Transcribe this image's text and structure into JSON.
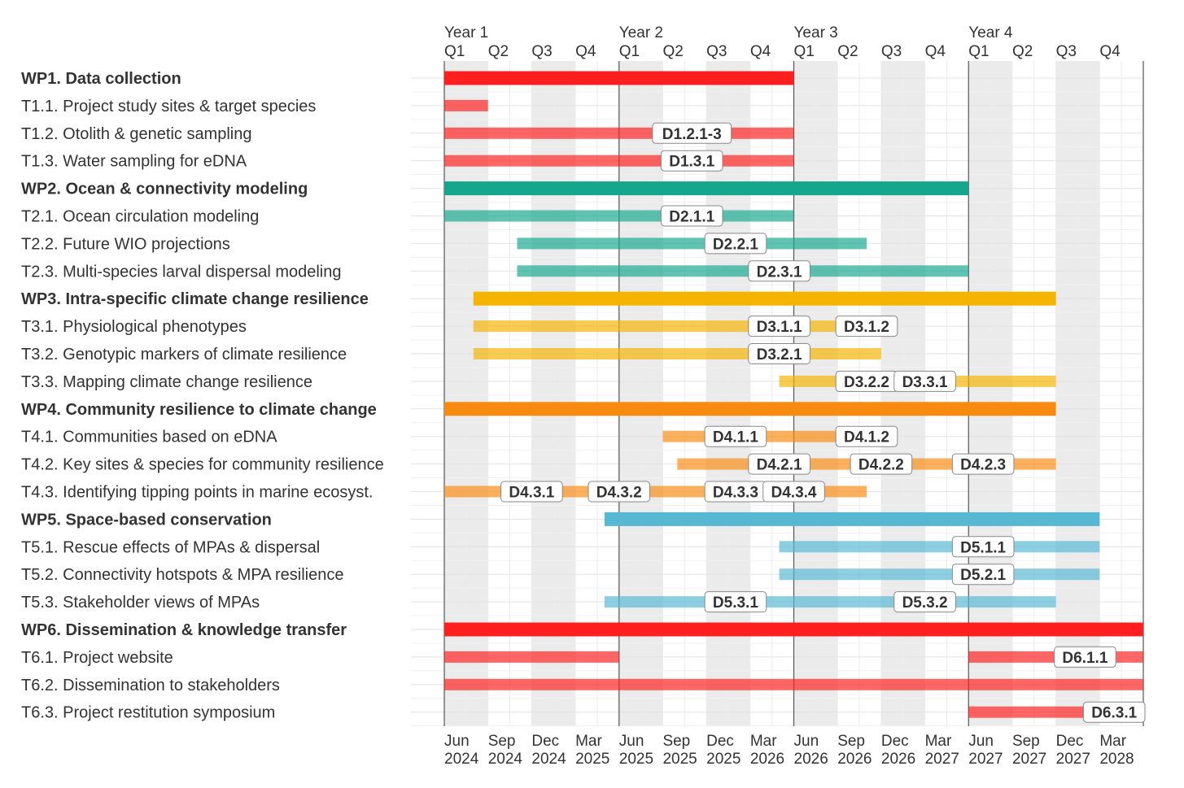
{
  "chart_data": {
    "type": "gantt",
    "year_labels": [
      "Year 1",
      "Year 2",
      "Year 3",
      "Year 4"
    ],
    "quarter_labels": [
      "Q1",
      "Q2",
      "Q3",
      "Q4"
    ],
    "bottom_ticks": [
      {
        "month": "Jun",
        "year": "2024"
      },
      {
        "month": "Sep",
        "year": "2024"
      },
      {
        "month": "Dec",
        "year": "2024"
      },
      {
        "month": "Mar",
        "year": "2025"
      },
      {
        "month": "Jun",
        "year": "2025"
      },
      {
        "month": "Sep",
        "year": "2025"
      },
      {
        "month": "Dec",
        "year": "2025"
      },
      {
        "month": "Mar",
        "year": "2026"
      },
      {
        "month": "Jun",
        "year": "2026"
      },
      {
        "month": "Sep",
        "year": "2026"
      },
      {
        "month": "Dec",
        "year": "2026"
      },
      {
        "month": "Mar",
        "year": "2027"
      },
      {
        "month": "Jun",
        "year": "2027"
      },
      {
        "month": "Sep",
        "year": "2027"
      },
      {
        "month": "Dec",
        "year": "2027"
      },
      {
        "month": "Mar",
        "year": "2028"
      }
    ],
    "x_start": "2024-06",
    "x_end": "2028-06",
    "colors": {
      "WP1": "#ff1f1f",
      "WP2": "#16a68d",
      "WP3": "#f5b400",
      "WP4": "#f98a10",
      "WP5": "#57b8d4",
      "WP6": "#ff1f1f",
      "shade": "#ebebeb",
      "grid": "#e2e2e2",
      "year_line": "#555555"
    },
    "rows": [
      {
        "label": "WP1. Data collection",
        "wp": "WP1",
        "bold": true,
        "start": "2024-06",
        "end": "2026-06",
        "deliverables": []
      },
      {
        "label": "T1.1. Project study sites & target species",
        "wp": "WP1",
        "bold": false,
        "start": "2024-06",
        "end": "2024-09",
        "deliverables": []
      },
      {
        "label": "T1.2. Otolith & genetic sampling",
        "wp": "WP1",
        "bold": false,
        "start": "2024-06",
        "end": "2026-06",
        "deliverables": [
          {
            "id": "D1.2.1-3",
            "date": "2025-11"
          }
        ]
      },
      {
        "label": "T1.3. Water sampling for eDNA",
        "wp": "WP1",
        "bold": false,
        "start": "2024-06",
        "end": "2026-06",
        "deliverables": [
          {
            "id": "D1.3.1",
            "date": "2025-11"
          }
        ]
      },
      {
        "label": "WP2. Ocean & connectivity modeling",
        "wp": "WP2",
        "bold": true,
        "start": "2024-06",
        "end": "2027-06",
        "deliverables": []
      },
      {
        "label": "T2.1. Ocean circulation modeling",
        "wp": "WP2",
        "bold": false,
        "start": "2024-06",
        "end": "2026-06",
        "deliverables": [
          {
            "id": "D2.1.1",
            "date": "2025-11"
          }
        ]
      },
      {
        "label": "T2.2. Future WIO projections",
        "wp": "WP2",
        "bold": false,
        "start": "2024-11",
        "end": "2026-11",
        "deliverables": [
          {
            "id": "D2.2.1",
            "date": "2026-02"
          }
        ]
      },
      {
        "label": "T2.3. Multi-species larval dispersal modeling",
        "wp": "WP2",
        "bold": false,
        "start": "2024-11",
        "end": "2027-06",
        "deliverables": [
          {
            "id": "D2.3.1",
            "date": "2026-05"
          }
        ]
      },
      {
        "label": "WP3. Intra-specific climate change resilience",
        "wp": "WP3",
        "bold": true,
        "start": "2024-08",
        "end": "2027-12",
        "deliverables": []
      },
      {
        "label": "T3.1. Physiological phenotypes",
        "wp": "WP3",
        "bold": false,
        "start": "2024-08",
        "end": "2026-12",
        "deliverables": [
          {
            "id": "D3.1.1",
            "date": "2026-05"
          },
          {
            "id": "D3.1.2",
            "date": "2026-11"
          }
        ]
      },
      {
        "label": "T3.2. Genotypic markers of climate resilience",
        "wp": "WP3",
        "bold": false,
        "start": "2024-08",
        "end": "2026-12",
        "deliverables": [
          {
            "id": "D3.2.1",
            "date": "2026-05"
          }
        ]
      },
      {
        "label": "T3.3. Mapping climate change resilience",
        "wp": "WP3",
        "bold": false,
        "start": "2026-05",
        "end": "2027-12",
        "deliverables": [
          {
            "id": "D3.2.2",
            "date": "2026-11"
          },
          {
            "id": "D3.3.1",
            "date": "2027-03"
          }
        ]
      },
      {
        "label": "WP4. Community resilience to climate change",
        "wp": "WP4",
        "bold": true,
        "start": "2024-06",
        "end": "2027-12",
        "deliverables": []
      },
      {
        "label": "T4.1. Communities based on eDNA",
        "wp": "WP4",
        "bold": false,
        "start": "2025-09",
        "end": "2026-12",
        "deliverables": [
          {
            "id": "D4.1.1",
            "date": "2026-02"
          },
          {
            "id": "D4.1.2",
            "date": "2026-11"
          }
        ]
      },
      {
        "label": "T4.2. Key sites & species for community resilience",
        "wp": "WP4",
        "bold": false,
        "start": "2025-10",
        "end": "2027-12",
        "deliverables": [
          {
            "id": "D4.2.1",
            "date": "2026-05"
          },
          {
            "id": "D4.2.2",
            "date": "2026-12"
          },
          {
            "id": "D4.2.3",
            "date": "2027-07"
          }
        ]
      },
      {
        "label": "T4.3. Identifying tipping points in marine ecosyst.",
        "wp": "WP4",
        "bold": false,
        "start": "2024-06",
        "end": "2026-11",
        "deliverables": [
          {
            "id": "D4.3.1",
            "date": "2024-12"
          },
          {
            "id": "D4.3.2",
            "date": "2025-06"
          },
          {
            "id": "D4.3.3",
            "date": "2026-02"
          },
          {
            "id": "D4.3.4",
            "date": "2026-06"
          }
        ]
      },
      {
        "label": "WP5. Space-based conservation",
        "wp": "WP5",
        "bold": true,
        "start": "2025-05",
        "end": "2028-03",
        "deliverables": []
      },
      {
        "label": "T5.1. Rescue effects of MPAs & dispersal",
        "wp": "WP5",
        "bold": false,
        "start": "2026-05",
        "end": "2028-03",
        "deliverables": [
          {
            "id": "D5.1.1",
            "date": "2027-07"
          }
        ]
      },
      {
        "label": "T5.2. Connectivity hotspots & MPA resilience",
        "wp": "WP5",
        "bold": false,
        "start": "2026-05",
        "end": "2028-03",
        "deliverables": [
          {
            "id": "D5.2.1",
            "date": "2027-07"
          }
        ]
      },
      {
        "label": "T5.3. Stakeholder views of MPAs",
        "wp": "WP5",
        "bold": false,
        "start": "2025-05",
        "end": "2027-12",
        "deliverables": [
          {
            "id": "D5.3.1",
            "date": "2026-02"
          },
          {
            "id": "D5.3.2",
            "date": "2027-03"
          }
        ]
      },
      {
        "label": "WP6. Dissemination & knowledge transfer",
        "wp": "WP6",
        "bold": true,
        "start": "2024-06",
        "end": "2028-06",
        "deliverables": []
      },
      {
        "label": "T6.1. Project website",
        "wp": "WP6",
        "bold": false,
        "start": "2024-06",
        "end": "2025-06",
        "deliverables": [
          {
            "id": "D6.1.1",
            "date": "2028-02"
          }
        ]
      },
      {
        "label": "T6.2. Dissemination to stakeholders",
        "wp": "WP6",
        "bold": false,
        "start": "2024-06",
        "end": "2028-06",
        "deliverables": []
      },
      {
        "label": "T6.3. Project restitution symposium",
        "wp": "WP6",
        "bold": false,
        "start": "2027-06",
        "end": "2028-06",
        "deliverables": [
          {
            "id": "D6.3.1",
            "date": "2028-04"
          }
        ]
      }
    ],
    "extra_bars": [
      {
        "row": "T6.1. Project website",
        "start": "2027-06",
        "end": "2028-06"
      }
    ]
  }
}
